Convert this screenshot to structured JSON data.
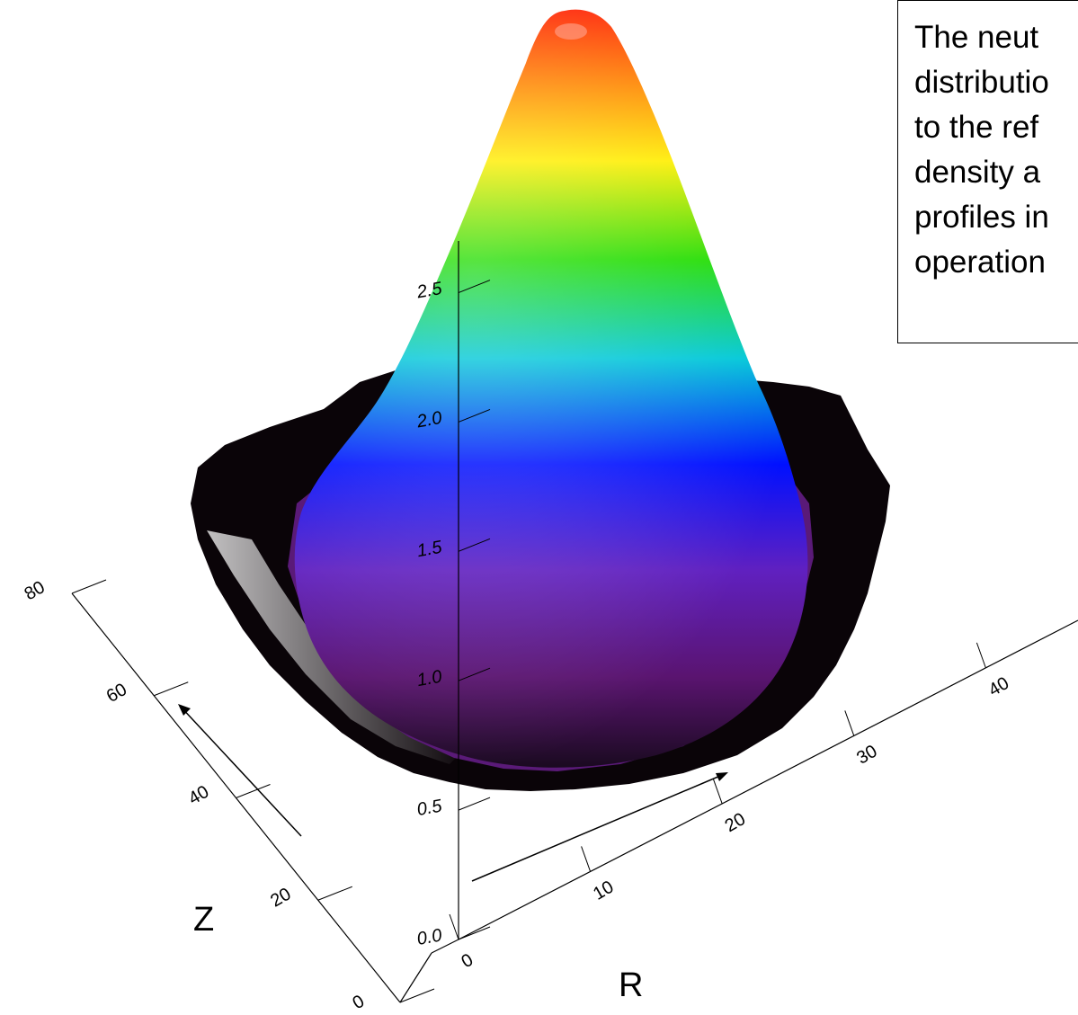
{
  "chart_data": {
    "type": "surface3d",
    "title": "",
    "annotation_lines": [
      "The neut",
      "distributio",
      "to the ref",
      "density a",
      "profiles in",
      "operation"
    ],
    "axes": {
      "r": {
        "label": "R",
        "ticks": [
          0,
          10,
          20,
          30,
          40
        ],
        "range": [
          0,
          40
        ]
      },
      "z": {
        "label": "Z",
        "ticks": [
          0,
          20,
          40,
          60,
          80
        ],
        "range": [
          0,
          80
        ]
      },
      "density": {
        "label": "",
        "ticks": [
          0.0,
          0.5,
          1.0,
          1.5,
          2.0,
          2.5
        ],
        "range": [
          0.0,
          2.7
        ]
      }
    },
    "surface": {
      "peak_value": 2.7,
      "peak_location": {
        "r": 0,
        "z": 40
      },
      "base_value": 1.0,
      "colormap": [
        "#000000",
        "#ffffff",
        "#4b0082",
        "#800080",
        "#0000ff",
        "#00ffff",
        "#00ff00",
        "#ffff00",
        "#ff8000",
        "#ff0000"
      ]
    }
  }
}
